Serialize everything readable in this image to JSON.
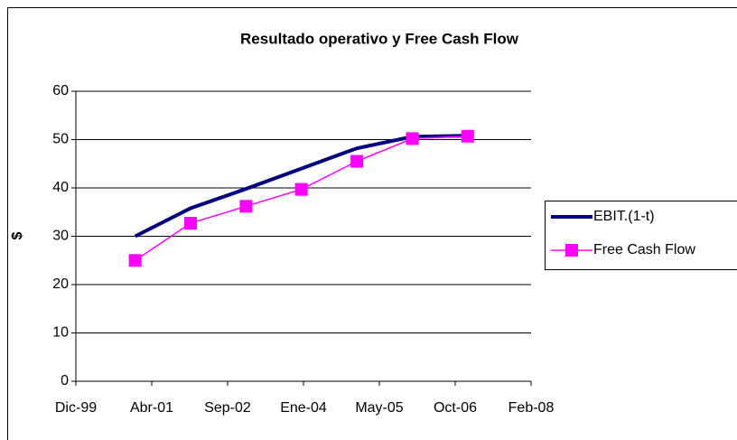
{
  "chart_data": {
    "type": "line",
    "title": "Resultado operativo y Free Cash Flow",
    "y_label": "$",
    "x": [
      36891,
      37256,
      37621,
      37986,
      38352,
      38717,
      39082
    ],
    "series": [
      {
        "name": "EBIT.(1-t)",
        "color": "#000080",
        "values": [
          30,
          35.8,
          39.8,
          44,
          48.2,
          50.6,
          50.8
        ]
      },
      {
        "name": "Free Cash Flow",
        "color": "#ff00ff",
        "marker": "square",
        "values": [
          25,
          32.7,
          36.2,
          39.7,
          45.5,
          50.2,
          50.7
        ]
      }
    ],
    "xlim": [
      36500,
      39500
    ],
    "xticks": [
      {
        "value": 36500,
        "label": "Dic-99"
      },
      {
        "value": 37000,
        "label": "Abr-01"
      },
      {
        "value": 37500,
        "label": "Sep-02"
      },
      {
        "value": 38000,
        "label": "Ene-04"
      },
      {
        "value": 38500,
        "label": "May-05"
      },
      {
        "value": 39000,
        "label": "Oct-06"
      },
      {
        "value": 39500,
        "label": "Feb-08"
      }
    ],
    "ylim": [
      0,
      60
    ],
    "yticks": [
      0,
      10,
      20,
      30,
      40,
      50,
      60
    ],
    "grid": true,
    "legend": "right"
  }
}
